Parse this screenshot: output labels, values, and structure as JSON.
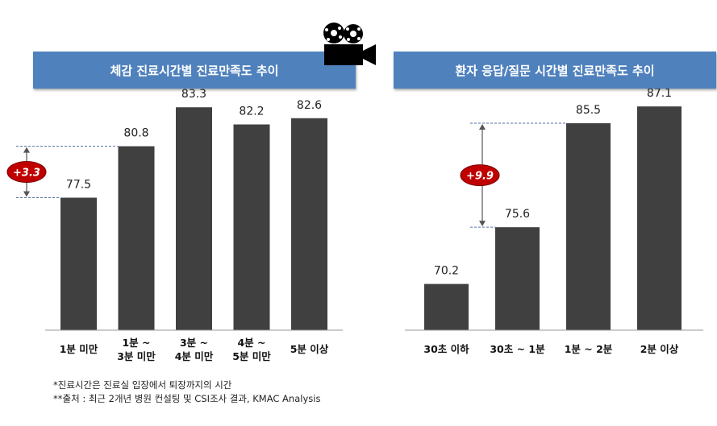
{
  "left_banner": "체감 진료시간별 진료만족도 추이",
  "right_banner": "환자 응답/질문 시간별 진료만족도 추이",
  "footnotes": [
    "*진료시간은 진료실 입장에서 퇴장까지의 시간",
    "**출처 : 최근 2개년 병원 컨설팅 및 CSI조사 결과, KMAC Analysis"
  ],
  "icon": "movie-camera-icon",
  "colors": {
    "banner": "#4f81bd",
    "bar": "#404040",
    "badge": "#c00000",
    "guide": "#4f6fa0"
  },
  "chart_data": [
    {
      "type": "bar",
      "title": "체감 진료시간별 진료만족도 추이",
      "categories": [
        [
          "1분 미만"
        ],
        [
          "1분 ~",
          "3분 미만"
        ],
        [
          "3분 ~",
          "4분 미만"
        ],
        [
          "4분 ~",
          "5분 미만"
        ],
        [
          "5분 이상"
        ]
      ],
      "values": [
        77.5,
        80.8,
        83.3,
        82.2,
        82.6
      ],
      "ylim": [
        69,
        84.5
      ],
      "annotation": {
        "label": "+3.3",
        "from_index": 0,
        "to_index": 1
      }
    },
    {
      "type": "bar",
      "title": "환자 응답/질문 시간별 진료만족도 추이",
      "categories": [
        [
          "30초 이하"
        ],
        [
          "30초 ~ 1분"
        ],
        [
          "1분 ~ 2분"
        ],
        [
          "2분 이상"
        ]
      ],
      "values": [
        70.2,
        75.6,
        85.5,
        87.1
      ],
      "ylim": [
        65.8,
        88.8
      ],
      "annotation": {
        "label": "+9.9",
        "from_index": 1,
        "to_index": 2
      }
    }
  ]
}
